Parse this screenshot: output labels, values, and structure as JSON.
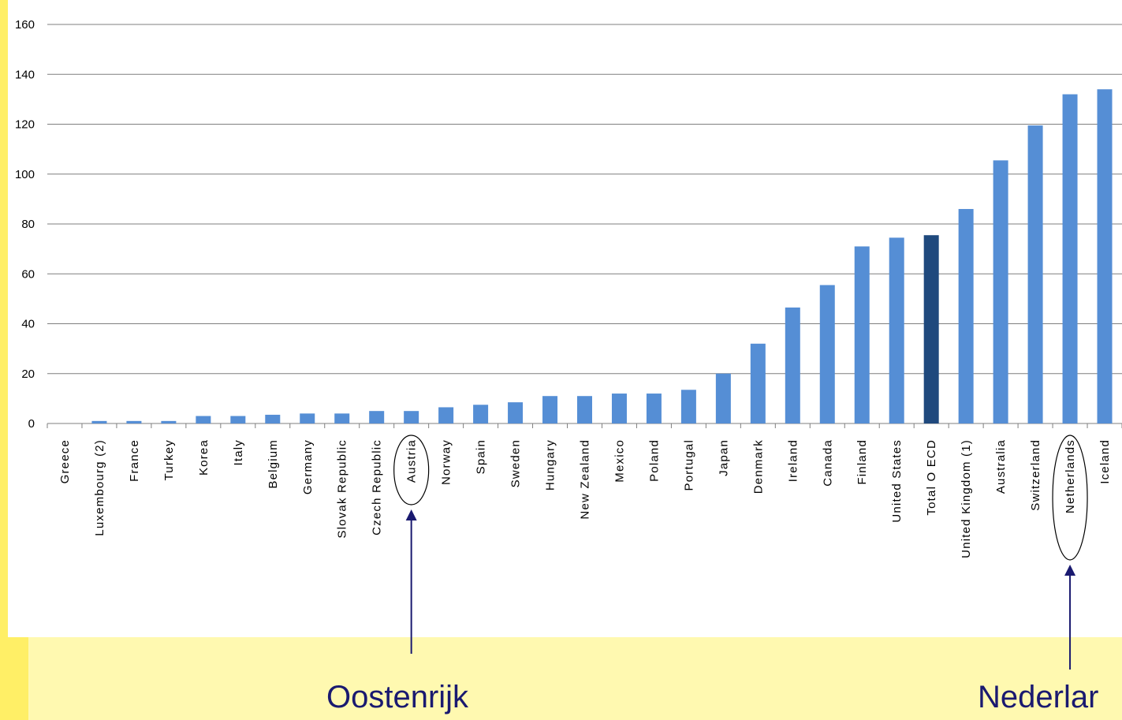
{
  "chart_data": {
    "type": "bar",
    "categories": [
      "Greece",
      "Luxembourg (2)",
      "France",
      "Turkey",
      "Korea",
      "Italy",
      "Belgium",
      "Germany",
      "Slovak Republic",
      "Czech Republic",
      "Austria",
      "Norway",
      "Spain",
      "Sweden",
      "Hungary",
      "New Zealand",
      "Mexico",
      "Poland",
      "Portugal",
      "Japan",
      "Denmark",
      "Ireland",
      "Canada",
      "Finland",
      "United States",
      "Total O ECD",
      "United Kingdom (1)",
      "Australia",
      "Switzerland",
      "Netherlands",
      "Iceland"
    ],
    "values": [
      0,
      1,
      1,
      1,
      3,
      3,
      3.5,
      4,
      4,
      5,
      5,
      6.5,
      7.5,
      8.5,
      11,
      11,
      12,
      12,
      13.5,
      20,
      32,
      46.5,
      55.5,
      71,
      74.5,
      75.5,
      86,
      105.5,
      119.5,
      132,
      134
    ],
    "highlight_category": "Total O ECD",
    "ylim": [
      0,
      160
    ],
    "yticks": [
      0,
      20,
      40,
      60,
      80,
      100,
      120,
      140,
      160
    ],
    "grid": true,
    "colors": {
      "bar": "#558ed5",
      "highlight": "#1f497d",
      "grid": "#7f7f7f",
      "annotation": "#1a1a70"
    },
    "circled_categories": [
      "Austria",
      "Netherlands"
    ],
    "annotations": [
      {
        "text": "Oostenrijk",
        "target": "Austria"
      },
      {
        "text": "Nederlar",
        "target": "Netherlands"
      }
    ]
  }
}
